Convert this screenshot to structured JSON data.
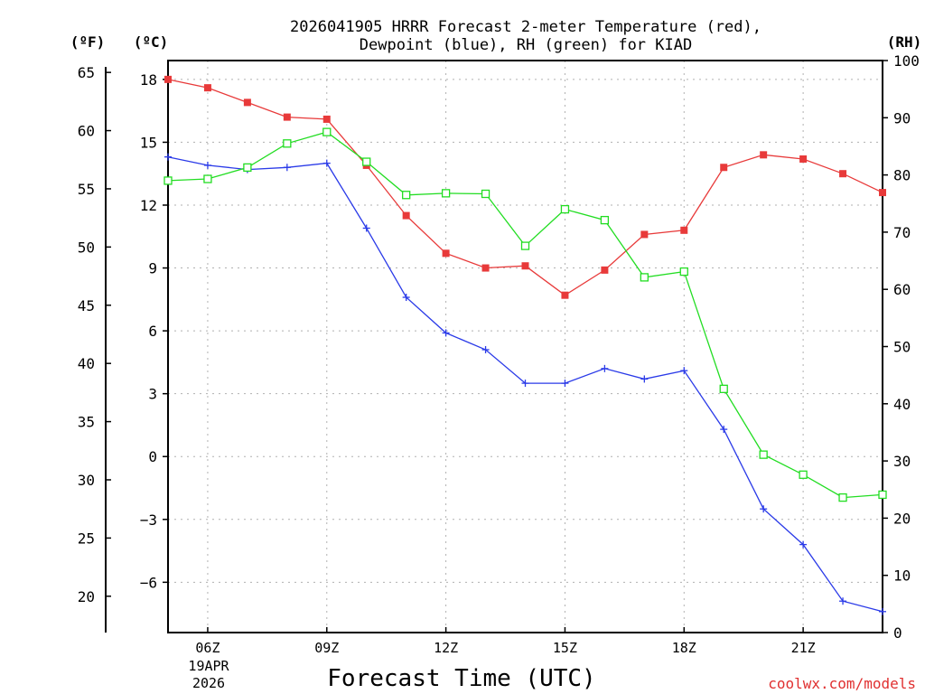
{
  "chart_data": {
    "type": "line",
    "title_line1": "2026041905 HRRR Forecast 2-meter Temperature (red),",
    "title_line2": "Dewpoint (blue), RH (green) for KIAD",
    "unit_labels": {
      "f": "(ºF)",
      "c": "(ºC)",
      "rh": "(RH)"
    },
    "xlabel": "Forecast Time (UTC)",
    "credit": "coolwx.com/models",
    "date_label": [
      "19APR",
      "2026"
    ],
    "x_range": [
      5,
      23
    ],
    "x_ticks": [
      {
        "x": 6,
        "label": "06Z"
      },
      {
        "x": 9,
        "label": "09Z"
      },
      {
        "x": 12,
        "label": "12Z"
      },
      {
        "x": 15,
        "label": "15Z"
      },
      {
        "x": 18,
        "label": "18Z"
      },
      {
        "x": 21,
        "label": "21Z"
      }
    ],
    "celsius_axis": {
      "range": [
        -8.4,
        18.9
      ],
      "ticks": [
        -6,
        -3,
        0,
        3,
        6,
        9,
        12,
        15,
        18
      ],
      "labels": [
        "−6",
        "−3",
        "0",
        "3",
        "6",
        "9",
        "12",
        "15",
        "18"
      ]
    },
    "fahrenheit_axis": {
      "ticks": [
        20,
        25,
        30,
        35,
        40,
        45,
        50,
        55,
        60,
        65
      ],
      "labels": [
        "20",
        "25",
        "30",
        "35",
        "40",
        "45",
        "50",
        "55",
        "60",
        "65"
      ]
    },
    "rh_axis": {
      "range": [
        0,
        100
      ],
      "ticks": [
        0,
        10,
        20,
        30,
        40,
        50,
        60,
        70,
        80,
        90,
        100
      ],
      "labels": [
        "0",
        "10",
        "20",
        "30",
        "40",
        "50",
        "60",
        "70",
        "80",
        "90",
        "100"
      ]
    },
    "series": [
      {
        "name": "Temperature",
        "axis": "celsius",
        "color": "#e83a3a",
        "marker": "filled-square",
        "x": [
          5,
          6,
          7,
          8,
          9,
          10,
          11,
          12,
          13,
          14,
          15,
          16,
          17,
          18,
          19,
          20,
          21,
          22,
          23
        ],
        "values": [
          18.0,
          17.6,
          16.9,
          16.2,
          16.1,
          13.9,
          11.5,
          9.7,
          9.0,
          9.1,
          7.7,
          8.9,
          10.6,
          10.8,
          13.8,
          14.4,
          14.2,
          13.5,
          12.6
        ]
      },
      {
        "name": "Dewpoint",
        "axis": "celsius",
        "color": "#2a3ae8",
        "marker": "plus",
        "x": [
          5,
          6,
          7,
          8,
          9,
          10,
          11,
          12,
          13,
          14,
          15,
          16,
          17,
          18,
          19,
          20,
          21,
          22,
          23
        ],
        "values": [
          14.3,
          13.9,
          13.7,
          13.8,
          14.0,
          10.9,
          7.6,
          5.9,
          5.1,
          3.5,
          3.5,
          4.2,
          3.7,
          4.1,
          1.3,
          -2.5,
          -4.2,
          -6.9,
          -7.4
        ]
      },
      {
        "name": "RH",
        "axis": "rh",
        "color": "#22dd22",
        "marker": "open-square",
        "x": [
          5,
          6,
          7,
          8,
          9,
          10,
          11,
          12,
          13,
          14,
          15,
          16,
          17,
          18,
          19,
          20,
          21,
          22,
          23
        ],
        "values": [
          79,
          79.3,
          81.3,
          85.5,
          87.5,
          82.3,
          76.5,
          76.8,
          76.7,
          67.6,
          74,
          72.1,
          62.1,
          63.1,
          42.6,
          31.1,
          27.6,
          23.6,
          24.1
        ]
      }
    ]
  }
}
